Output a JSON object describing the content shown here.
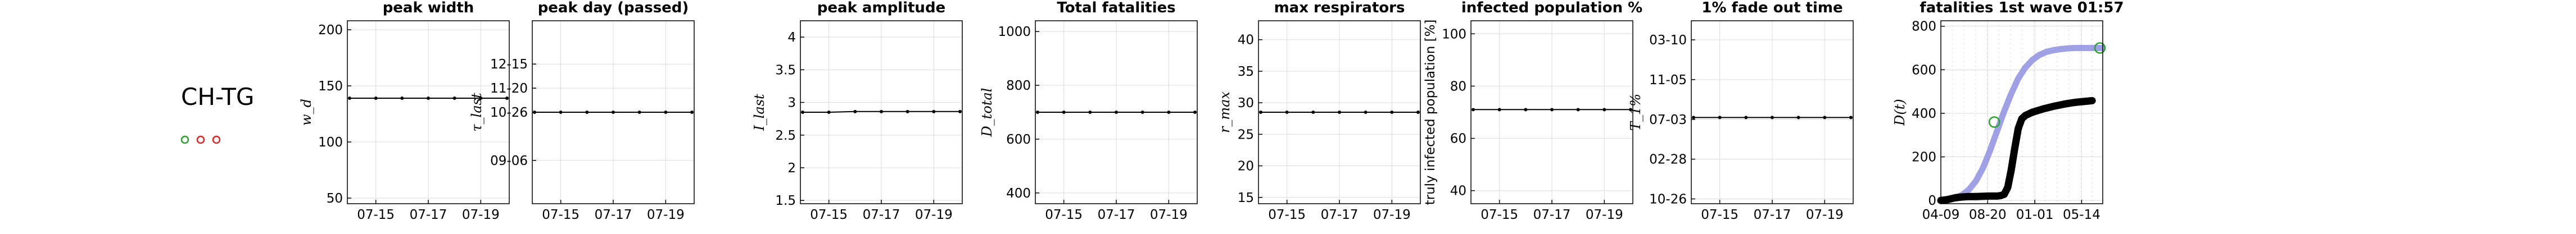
{
  "region": {
    "name": "CH-TG",
    "markers": [
      {
        "color": "#2ca02c"
      },
      {
        "color": "#d62728"
      },
      {
        "color": "#d62728"
      }
    ]
  },
  "chart_data": [
    {
      "type": "line",
      "title": "peak width",
      "ylabel": "w_d",
      "x": [
        "07-14",
        "07-15",
        "07-16",
        "07-17",
        "07-18",
        "07-19",
        "07-20"
      ],
      "xticks": [
        "07-15",
        "07-17",
        "07-19"
      ],
      "y_ticks": [
        50,
        100,
        150,
        200
      ],
      "ylim": [
        45,
        208
      ],
      "series": [
        {
          "values": [
            139,
            139,
            139,
            139,
            139,
            139,
            139
          ]
        }
      ]
    },
    {
      "type": "line",
      "title": "peak day (passed)",
      "ylabel": "τ_last",
      "x": [
        "07-14",
        "07-15",
        "07-16",
        "07-17",
        "07-18",
        "07-19",
        "07-20"
      ],
      "xticks": [
        "07-15",
        "07-17",
        "07-19"
      ],
      "y_ticks": [
        "09-06",
        "10-26",
        "11-20",
        "12-15"
      ],
      "y_tick_values": [
        0,
        50,
        75,
        100
      ],
      "ylim": [
        -45,
        145
      ],
      "series": [
        {
          "values": [
            50,
            50,
            50,
            50,
            50,
            50,
            50
          ]
        }
      ]
    },
    {
      "type": "line",
      "title": "peak amplitude",
      "ylabel": "I_last",
      "x": [
        "07-14",
        "07-15",
        "07-16",
        "07-17",
        "07-18",
        "07-19",
        "07-20"
      ],
      "xticks": [
        "07-15",
        "07-17",
        "07-19"
      ],
      "y_ticks": [
        1.5,
        2,
        2.5,
        3,
        3.5,
        4
      ],
      "ylim": [
        1.45,
        4.25
      ],
      "series": [
        {
          "values": [
            2.85,
            2.85,
            2.86,
            2.86,
            2.86,
            2.86,
            2.86
          ]
        }
      ]
    },
    {
      "type": "line",
      "title": "Total fatalities",
      "ylabel": "D_total",
      "x": [
        "07-14",
        "07-15",
        "07-16",
        "07-17",
        "07-18",
        "07-19",
        "07-20"
      ],
      "xticks": [
        "07-15",
        "07-17",
        "07-19"
      ],
      "y_ticks": [
        400,
        600,
        800,
        1000
      ],
      "ylim": [
        360,
        1040
      ],
      "series": [
        {
          "values": [
            700,
            700,
            700,
            700,
            700,
            700,
            700
          ]
        }
      ]
    },
    {
      "type": "line",
      "title": "max respirators",
      "ylabel": "r_max",
      "x": [
        "07-14",
        "07-15",
        "07-16",
        "07-17",
        "07-18",
        "07-19",
        "07-20"
      ],
      "xticks": [
        "07-15",
        "07-17",
        "07-19"
      ],
      "y_ticks": [
        15,
        20,
        25,
        30,
        35,
        40
      ],
      "ylim": [
        14,
        43
      ],
      "series": [
        {
          "values": [
            28.5,
            28.5,
            28.5,
            28.5,
            28.5,
            28.5,
            28.5
          ]
        }
      ]
    },
    {
      "type": "line",
      "title": "infected population %",
      "ylabel": "truly infected population [%]",
      "x": [
        "07-14",
        "07-15",
        "07-16",
        "07-17",
        "07-18",
        "07-19",
        "07-20"
      ],
      "xticks": [
        "07-15",
        "07-17",
        "07-19"
      ],
      "y_ticks": [
        40,
        60,
        80,
        100
      ],
      "ylim": [
        35,
        105
      ],
      "series": [
        {
          "values": [
            71,
            71,
            71,
            71,
            71,
            71,
            71
          ]
        }
      ]
    },
    {
      "type": "line",
      "title": "1% fade out time",
      "ylabel": "T_1%",
      "x": [
        "07-14",
        "07-15",
        "07-16",
        "07-17",
        "07-18",
        "07-19",
        "07-20"
      ],
      "xticks": [
        "07-15",
        "07-17",
        "07-19"
      ],
      "y_ticks": [
        "10-26",
        "02-28",
        "07-03",
        "11-05",
        "03-10"
      ],
      "y_tick_values": [
        0,
        125,
        250,
        375,
        500
      ],
      "ylim": [
        -15,
        560
      ],
      "series": [
        {
          "values": [
            256,
            256,
            256,
            256,
            256,
            256,
            256
          ]
        }
      ]
    },
    {
      "type": "line",
      "title": "fatalities 1st wave 01:57",
      "ylabel": "D(t)",
      "x_range_days": [
        0,
        460
      ],
      "xticks": [
        "04-09",
        "08-20",
        "01-01",
        "05-14"
      ],
      "xtick_days": [
        0,
        133,
        267,
        400
      ],
      "y_ticks": [
        0,
        200,
        400,
        600,
        800
      ],
      "ylim": [
        -15,
        825
      ],
      "series": [
        {
          "color": "#8f8fe0",
          "points": [
            [
              0,
              2
            ],
            [
              20,
              5
            ],
            [
              40,
              12
            ],
            [
              60,
              25
            ],
            [
              80,
              50
            ],
            [
              100,
              90
            ],
            [
              120,
              150
            ],
            [
              140,
              230
            ],
            [
              160,
              320
            ],
            [
              180,
              410
            ],
            [
              200,
              490
            ],
            [
              220,
              560
            ],
            [
              240,
              610
            ],
            [
              260,
              645
            ],
            [
              280,
              668
            ],
            [
              300,
              682
            ],
            [
              320,
              690
            ],
            [
              340,
              695
            ],
            [
              360,
              698
            ],
            [
              380,
              700
            ],
            [
              400,
              700
            ],
            [
              430,
              700
            ],
            [
              460,
              700
            ]
          ]
        },
        {
          "color": "#000000",
          "points": [
            [
              0,
              0
            ],
            [
              20,
              4
            ],
            [
              40,
              12
            ],
            [
              60,
              16
            ],
            [
              80,
              18
            ],
            [
              100,
              18
            ],
            [
              120,
              19
            ],
            [
              140,
              20
            ],
            [
              160,
              20
            ],
            [
              170,
              22
            ],
            [
              180,
              28
            ],
            [
              190,
              60
            ],
            [
              200,
              140
            ],
            [
              210,
              240
            ],
            [
              220,
              330
            ],
            [
              230,
              375
            ],
            [
              240,
              390
            ],
            [
              260,
              405
            ],
            [
              290,
              420
            ],
            [
              320,
              432
            ],
            [
              350,
              442
            ],
            [
              380,
              450
            ],
            [
              410,
              455
            ],
            [
              430,
              458
            ]
          ]
        }
      ],
      "markers": [
        {
          "color": "#2ca02c",
          "x": 152,
          "y": 360
        },
        {
          "color": "#2ca02c",
          "x": 452,
          "y": 700
        }
      ]
    }
  ]
}
